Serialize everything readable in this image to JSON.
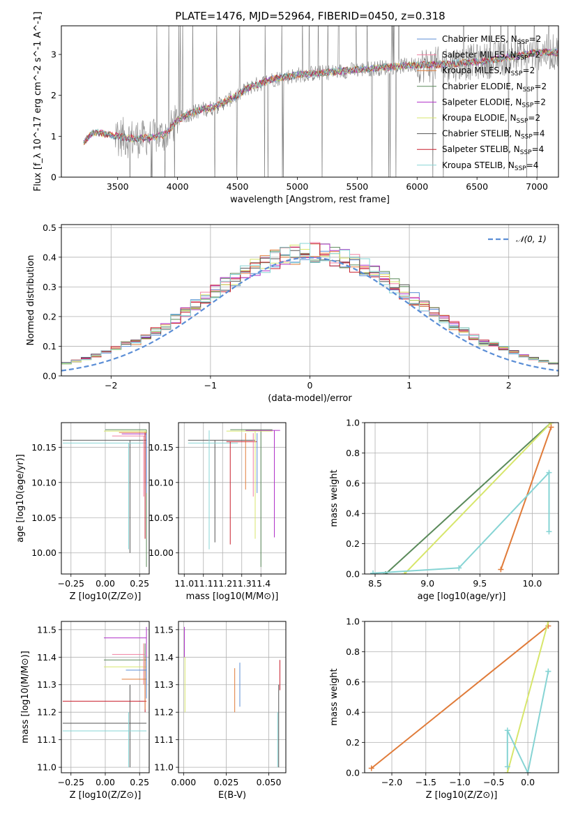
{
  "page": {
    "title": "PLATE=1476, MJD=52964, FIBERID=0450, z=0.318"
  },
  "colors": {
    "chabrier_miles": "#5b8ed6",
    "salpeter_miles": "#f07fa0",
    "kroupa_miles": "#e07b39",
    "chabrier_elodie": "#5a8a5a",
    "salpeter_elodie": "#b030c8",
    "kroupa_elodie": "#d7e66b",
    "chabrier_stelib": "#555555",
    "salpeter_stelib": "#c81e2c",
    "kroupa_stelib": "#86d4d4",
    "data_gray": "#808080",
    "normal_curve": "#5b8ed6"
  },
  "chart_data": [
    {
      "id": "spectrum",
      "type": "line",
      "title": "PLATE=1476, MJD=52964, FIBERID=0450, z=0.318",
      "xlabel": "wavelength [Angstrom, rest frame]",
      "ylabel": "Flux [f_λ 10^-17 erg cm^-2 s^-1 A^-1]",
      "xlim": [
        3030,
        7180
      ],
      "ylim": [
        0,
        3.7
      ],
      "xticks": [
        3500,
        4000,
        4500,
        5000,
        5500,
        6000,
        6500,
        7000
      ],
      "yticks": [
        0,
        1,
        2,
        3
      ],
      "grid": false,
      "legend_position": "top-right",
      "legend": [
        {
          "label": "Chabrier MILES, N_SSP=2",
          "color": "#5b8ed6"
        },
        {
          "label": "Salpeter MILES, N_SSP=2",
          "color": "#f07fa0"
        },
        {
          "label": "Kroupa MILES, N_SSP=2",
          "color": "#e07b39"
        },
        {
          "label": "Chabrier ELODIE, N_SSP=2",
          "color": "#5a8a5a"
        },
        {
          "label": "Salpeter ELODIE, N_SSP=2",
          "color": "#b030c8"
        },
        {
          "label": "Kroupa ELODIE, N_SSP=2",
          "color": "#d7e66b"
        },
        {
          "label": "Chabrier STELIB, N_SSP=4",
          "color": "#555555"
        },
        {
          "label": "Salpeter STELIB, N_SSP=4",
          "color": "#c81e2c"
        },
        {
          "label": "Kroupa STELIB, N_SSP=4",
          "color": "#86d4d4"
        }
      ],
      "continuum": {
        "x": [
          3200,
          3300,
          3400,
          3500,
          3600,
          3700,
          3800,
          3900,
          4000,
          4100,
          4200,
          4300,
          4400,
          4500,
          4600,
          4700,
          4800,
          4900,
          5000,
          5200,
          5400,
          5600,
          5800,
          6000,
          6200,
          6400,
          6600,
          6800,
          7000
        ],
        "y": [
          0.8,
          1.1,
          1.05,
          1.0,
          0.95,
          0.95,
          0.98,
          1.05,
          1.4,
          1.55,
          1.65,
          1.7,
          1.85,
          2.0,
          2.2,
          2.3,
          2.4,
          2.45,
          2.5,
          2.55,
          2.6,
          2.65,
          2.7,
          2.75,
          2.75,
          2.8,
          2.85,
          2.95,
          3.05
        ]
      }
    },
    {
      "id": "residuals",
      "type": "line",
      "xlabel": "(data-model)/error",
      "ylabel": "Normed distribution",
      "xlim": [
        -2.5,
        2.5
      ],
      "ylim": [
        0,
        0.51
      ],
      "xticks": [
        -2,
        -1,
        0,
        1,
        2
      ],
      "yticks": [
        0.0,
        0.1,
        0.2,
        0.3,
        0.4,
        0.5
      ],
      "grid": true,
      "legend_position": "top-right",
      "legend": [
        {
          "label": "𝒩(0, 1)",
          "color": "#5b8ed6"
        }
      ],
      "hist_bin_width": 0.1
    },
    {
      "id": "age_vs_Z",
      "type": "scatter",
      "xlabel": "Z [log10(Z/Z⊙)]",
      "ylabel": "age  [log10(age/yr)]",
      "xlim": [
        -0.32,
        0.32
      ],
      "ylim": [
        9.97,
        10.185
      ],
      "xticks": [
        -0.25,
        0.0,
        0.25
      ],
      "yticks": [
        10.0,
        10.05,
        10.1,
        10.15
      ],
      "grid": true
    },
    {
      "id": "age_vs_mass",
      "type": "scatter",
      "xlabel": "mass [log10(M/M⊙)]",
      "xlim": [
        10.97,
        11.53
      ],
      "ylim": [
        9.97,
        10.185
      ],
      "xticks": [
        11.0,
        11.1,
        11.2,
        11.3,
        11.4
      ],
      "yticks": [
        10.0,
        10.05,
        10.1,
        10.15
      ],
      "grid": true
    },
    {
      "id": "weight_vs_age",
      "type": "line",
      "xlabel": "age  [log10(age/yr)]",
      "ylabel": "mass weight",
      "xlim": [
        8.4,
        10.25
      ],
      "ylim": [
        0,
        1
      ],
      "xticks": [
        8.5,
        9.0,
        9.5,
        10.0
      ],
      "yticks": [
        0.0,
        0.2,
        0.4,
        0.6,
        0.8,
        1.0
      ],
      "grid": true,
      "series": [
        {
          "color": "#5a8a5a",
          "x": [
            8.6,
            10.18
          ],
          "y": [
            0.0,
            1.0
          ]
        },
        {
          "color": "#d7e66b",
          "x": [
            8.78,
            10.18
          ],
          "y": [
            0.0,
            1.0
          ]
        },
        {
          "color": "#e07b39",
          "x": [
            9.7,
            10.18
          ],
          "y": [
            0.03,
            0.97
          ]
        },
        {
          "color": "#86d4d4",
          "x": [
            8.48,
            9.3,
            10.16,
            10.16
          ],
          "y": [
            0.005,
            0.04,
            0.67,
            0.28
          ]
        }
      ]
    },
    {
      "id": "mass_vs_Z",
      "type": "scatter",
      "xlabel": "Z [log10(Z/Z⊙)]",
      "ylabel": "mass [log10(M/M⊙)]",
      "xlim": [
        -0.32,
        0.32
      ],
      "ylim": [
        10.98,
        11.53
      ],
      "xticks": [
        -0.25,
        0.0,
        0.25
      ],
      "yticks": [
        11.0,
        11.1,
        11.2,
        11.3,
        11.4,
        11.5
      ],
      "grid": true
    },
    {
      "id": "mass_vs_ebv",
      "type": "scatter",
      "xlabel": "E(B-V)",
      "xlim": [
        -0.003,
        0.06
      ],
      "ylim": [
        10.98,
        11.53
      ],
      "xticks": [
        0.0,
        0.025,
        0.05
      ],
      "yticks": [
        11.0,
        11.1,
        11.2,
        11.3,
        11.4,
        11.5
      ],
      "grid": true
    },
    {
      "id": "weight_vs_Z",
      "type": "line",
      "xlabel": "Z [log10(Z/Z⊙)]",
      "ylabel": "mass weight",
      "xlim": [
        -2.4,
        0.45
      ],
      "ylim": [
        0,
        1
      ],
      "xticks": [
        -2.0,
        -1.5,
        -1.0,
        -0.5,
        0.0
      ],
      "yticks": [
        0.0,
        0.2,
        0.4,
        0.6,
        0.8,
        1.0
      ],
      "grid": true,
      "series": [
        {
          "color": "#e07b39",
          "x": [
            -2.3,
            0.3
          ],
          "y": [
            0.03,
            0.97
          ]
        },
        {
          "color": "#d7e66b",
          "x": [
            -0.3,
            0.3
          ],
          "y": [
            0.0,
            1.0
          ]
        },
        {
          "color": "#86d4d4",
          "x": [
            -0.3,
            -0.3,
            0.0,
            0.3,
            0.3
          ],
          "y": [
            0.04,
            0.28,
            0.0,
            0.67,
            0.67
          ]
        }
      ]
    }
  ]
}
